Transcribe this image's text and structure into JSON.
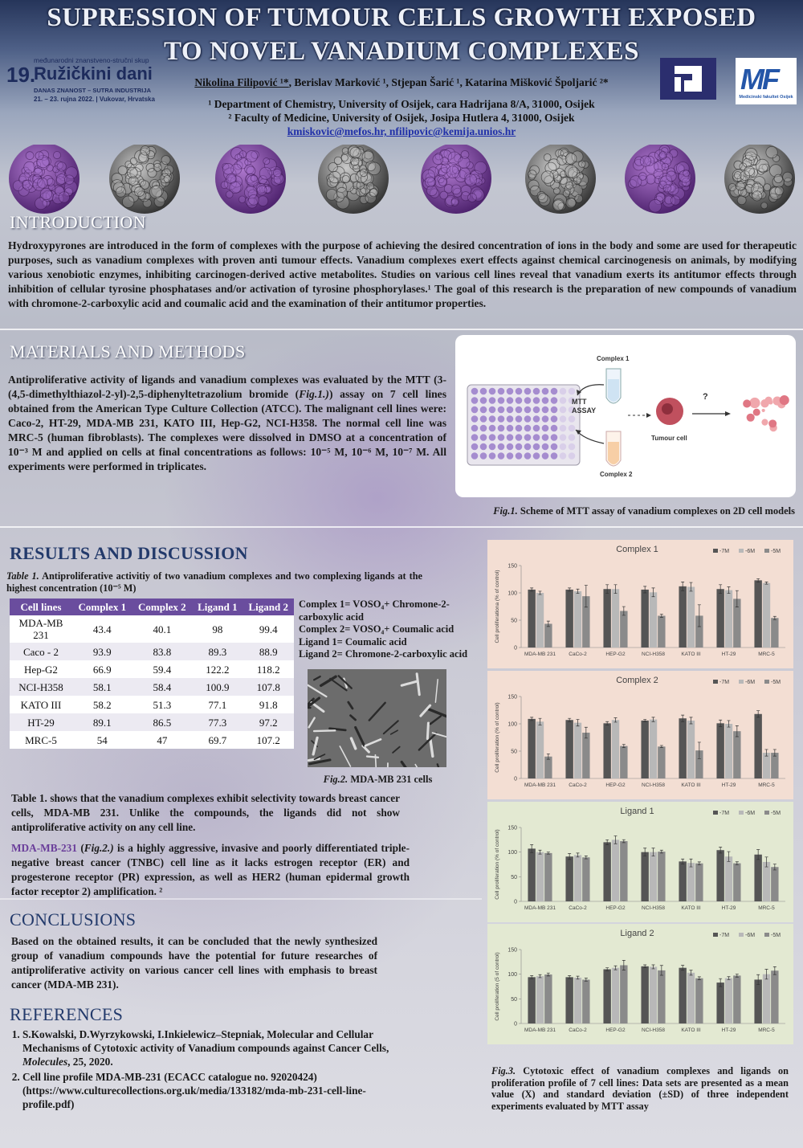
{
  "header": {
    "title": [
      "SUPRESSION OF TUMOUR CELLS GROWTH EXPOSED",
      "TO NOVEL VANADIUM COMPLEXES"
    ],
    "conference": {
      "subtitle": "međunarodni znanstveno-stručni skup",
      "edition": "19.",
      "name": "Ružičkini dani",
      "motto": "DANAS ZNANOST – SUTRA INDUSTRIJA",
      "dates": "21. – 23. rujna 2022.  |  Vukovar, Hrvatska"
    },
    "authors": {
      "first": "Nikolina Filipović ¹*",
      "rest": ", Berislav Marković ¹, Stjepan Šarić ¹, Katarina Mišković Špoljarić ²*"
    },
    "affiliations": [
      "¹ Department of Chemistry, University of Osijek, cara Hadrijana 8/A, 31000, Osijek",
      "² Faculty of Medicine, University of Osijek, Josipa Hutlera 4, 31000, Osijek"
    ],
    "emails": "kmiskovic@mefos.hr, nfilipovic@kemija.unios.hr",
    "logo_right": {
      "mark": "MF",
      "caption": "Medicinski fakultet Osijek"
    }
  },
  "intro": {
    "heading": "INTRODUCTION",
    "text": "Hydroxypyrones are introduced in the form of complexes with the purpose of achieving the desired concentration of ions in the body and some are used for therapeutic purposes, such as vanadium complexes with proven anti tumour effects. Vanadium complexes  exert effects against chemical carcinogenesis on animals, by modifying  various xenobiotic enzymes, inhibiting carcinogen-derived active metabolites. Studies on various cell lines reveal that vanadium exerts its antitumor effects through inhibition of cellular tyrosine phosphatases and/or activation of tyrosine phosphorylases.¹ The goal of this research is the preparation of new compounds of vanadium with chromone-2-carboxylic acid and coumalic acid and the examination of their antitumor properties."
  },
  "methods": {
    "heading": "MATERIALS AND METHODS",
    "text": [
      {
        "text": "Antiproliferative activity of ligands and vanadium complexes was evaluated by the MTT (3-(4,5-dimethylthiazol-2-yl)-2,5-diphenyltetrazolium bromide ("
      },
      {
        "text": "Fig.1.)",
        "em": true
      },
      {
        "text": ") assay on 7 cell lines obtained from the American Type Culture Collection (ATCC). The malignant cell lines were: Caco-2, HT-29, MDA-MB 231, KATO III, Hep-G2, NCI-H358. The normal cell line was MRC-5 (human fibroblasts). The complexes were dissolved in DMSO at a concentration of 10⁻³ M and applied on cells at final concentrations as follows: 10⁻⁵ M, 10⁻⁶ M, 10⁻⁷ M. All experiments were performed in triplicates."
      }
    ],
    "figure": {
      "labels": {
        "complex1": "Complex 1",
        "assay": [
          "MTT",
          "ASSAY"
        ],
        "cell": "Tumour cell",
        "question": "?",
        "complex2": "Complex 2"
      },
      "caption": [
        {
          "text": "Fig.1.",
          "em": true
        },
        {
          "text": " Scheme of MTT assay of vanadium complexes  on 2D cell models"
        }
      ]
    }
  },
  "results": {
    "heading": "RESULTS AND DISCUSSION",
    "table_caption": [
      {
        "text": "Table 1.",
        "em": true
      },
      {
        "text": " Antiproliferative activitiy of two vanadium complexes and two complexing ligands at the highest concentration (10⁻⁵ M)"
      }
    ],
    "table": {
      "header": [
        "Cell lines",
        "Complex 1",
        "Complex 2",
        "Ligand 1",
        "Ligand 2"
      ],
      "rows": [
        [
          "MDA-MB 231",
          43.4,
          40.1,
          98,
          99.4
        ],
        [
          "Caco - 2",
          93.9,
          83.8,
          89.3,
          88.9
        ],
        [
          "Hep-G2",
          66.9,
          59.4,
          122.2,
          118.2
        ],
        [
          "NCI-H358",
          58.1,
          58.4,
          100.9,
          107.8
        ],
        [
          "KATO III",
          58.2,
          51.3,
          77.1,
          91.8
        ],
        [
          "HT-29",
          89.1,
          86.5,
          77.3,
          97.2
        ],
        [
          "MRC-5",
          54,
          47,
          69.7,
          107.2
        ]
      ]
    },
    "notes": [
      "Complex 1= VOSO₄+ Chromone-2-carboxylic acid",
      "Complex 2= VOSO₄+ Coumalic acid",
      "Ligand 1= Coumalic acid",
      "Ligand 2= Chromone-2-carboxylic acid"
    ],
    "fig2_caption": [
      {
        "text": "Fig.2.",
        "em": true
      },
      {
        "text": " MDA-MB 231 cells"
      }
    ],
    "paragraph1": "Table 1. shows that the vanadium complexes exhibit selectivity towards breast cancer cells, MDA-MB 231. Unlike the compounds, the ligands did not show antiproliferative activity on any cell line.",
    "paragraph2": [
      {
        "text": "MDA-MB-231",
        "highlight": true
      },
      {
        "text": " ("
      },
      {
        "text": "Fig.2.)",
        "em": true
      },
      {
        "text": " is a highly aggressive, invasive and poorly differentiated triple-negative breast cancer (TNBC) cell line as it lacks estrogen receptor (ER) and progesterone receptor (PR) expression, as well as HER2 (human epidermal growth factor receptor 2) amplification. ²"
      }
    ],
    "fig3_caption": [
      {
        "text": "Fig.3.",
        "em": true
      },
      {
        "text": " Cytotoxic effect of vanadium complexes and ligands on proliferation profile of 7 cell lines: Data sets are presented as a mean value (X) and standard deviation (±SD) of three independent experiments evaluated by MTT assay"
      }
    ]
  },
  "conclusions": {
    "heading": "CONCLUSIONS",
    "text": "Based on the obtained results, it can be concluded that the newly synthesized group of vanadium compounds have the potential for future researches of antiproliferative activity on various cancer cell lines with emphasis to breast cancer (MDA-MB 231)."
  },
  "references": {
    "heading": "REFERENCES",
    "items": [
      [
        {
          "text": "S.Kowalski, D.Wyrzykowski, I.Inkielewicz–Stepniak, Molecular and Cellular Mechanisms of Cytotoxic activity of Vanadium compounds against Cancer Cells, "
        },
        {
          "text": "Molecules",
          "em": true
        },
        {
          "text": ", 25, 2020."
        }
      ],
      [
        {
          "text": "Cell line profile MDA-MB-231 (ECACC catalogue no. 92020424) (https://www.culturecollections.org.uk/media/133182/mda-mb-231-cell-line-profile.pdf)"
        }
      ]
    ]
  },
  "chart_data": [
    {
      "type": "bar",
      "title": "Complex 1",
      "y_label": "Cell proliferationa (% of control)",
      "categories": [
        "MDA-MB 231",
        "CaCo-2",
        "HEP-G2",
        "NCI-H358",
        "KATO III",
        "HT-29",
        "MRC-5"
      ],
      "ylim": [
        0,
        150
      ],
      "yticks": [
        0,
        50,
        100,
        150
      ],
      "series": [
        {
          "name": "-7M",
          "color": "#555555",
          "values": [
            106,
            106,
            107,
            106,
            112,
            107,
            123
          ],
          "errors": [
            3,
            3,
            8,
            6,
            8,
            8,
            3
          ]
        },
        {
          "name": "-6M",
          "color": "#b8b8b8",
          "values": [
            100,
            103,
            107,
            101,
            111,
            105,
            118
          ],
          "errors": [
            3,
            4,
            8,
            8,
            8,
            6,
            2
          ]
        },
        {
          "name": "-5M",
          "color": "#8a8a8a",
          "values": [
            43.4,
            93.9,
            66.9,
            58.1,
            58.2,
            89.1,
            54
          ],
          "errors": [
            5,
            20,
            8,
            3,
            20,
            15,
            3
          ]
        }
      ]
    },
    {
      "type": "bar",
      "title": "Complex 2",
      "y_label": "Cell proliferation (% of control)",
      "categories": [
        "MDA-MB 231",
        "CaCo-2",
        "HEP-G2",
        "NCI-H358",
        "KATO III",
        "HT-29",
        "MRC-5"
      ],
      "ylim": [
        0,
        150
      ],
      "yticks": [
        0,
        50,
        100,
        150
      ],
      "series": [
        {
          "name": "-7M",
          "color": "#555555",
          "values": [
            109,
            107,
            101,
            106,
            110,
            101,
            118
          ],
          "errors": [
            3,
            3,
            3,
            2,
            6,
            6,
            6
          ]
        },
        {
          "name": "-6M",
          "color": "#b8b8b8",
          "values": [
            104,
            102,
            107,
            108,
            106,
            100,
            47
          ],
          "errors": [
            6,
            6,
            4,
            4,
            6,
            6,
            6
          ]
        },
        {
          "name": "-5M",
          "color": "#8a8a8a",
          "values": [
            40.1,
            83.8,
            59.4,
            58.4,
            51.3,
            86.5,
            47
          ],
          "errors": [
            5,
            10,
            3,
            2,
            15,
            10,
            6
          ]
        }
      ]
    },
    {
      "type": "bar",
      "title": "Ligand 1",
      "y_label": "Cell proliferation (% of control)",
      "categories": [
        "MDA-MB 231",
        "CaCo-2",
        "HEP-G2",
        "NCI-H358",
        "KATO III",
        "HT-29",
        "MRC-5"
      ],
      "ylim": [
        0,
        150
      ],
      "yticks": [
        0,
        50,
        100,
        150
      ],
      "series": [
        {
          "name": "-7M",
          "color": "#555555",
          "values": [
            107,
            91,
            120,
            100,
            81,
            104,
            95
          ],
          "errors": [
            8,
            6,
            5,
            8,
            5,
            6,
            10
          ]
        },
        {
          "name": "-6M",
          "color": "#b8b8b8",
          "values": [
            100,
            94,
            125,
            100,
            78,
            91,
            80
          ],
          "errors": [
            4,
            4,
            8,
            8,
            8,
            10,
            10
          ]
        },
        {
          "name": "-5M",
          "color": "#8a8a8a",
          "values": [
            98,
            89.3,
            122.2,
            100.9,
            77.1,
            77.3,
            69.7
          ],
          "errors": [
            2,
            3,
            3,
            3,
            3,
            3,
            6
          ]
        }
      ]
    },
    {
      "type": "bar",
      "title": "Ligand 2",
      "y_label": "Cell proliferation (5 of control)",
      "categories": [
        "MDA-MB 231",
        "CaCo-2",
        "HEP-G2",
        "NCI-H358",
        "KATO III",
        "HT-29",
        "MRC-5"
      ],
      "ylim": [
        0,
        150
      ],
      "yticks": [
        0,
        50,
        100,
        150
      ],
      "series": [
        {
          "name": "-7M",
          "color": "#555555",
          "values": [
            94,
            94,
            110,
            116,
            113,
            83,
            89
          ],
          "errors": [
            3,
            3,
            3,
            3,
            5,
            8,
            10
          ]
        },
        {
          "name": "-6M",
          "color": "#b8b8b8",
          "values": [
            96,
            93,
            113,
            115,
            103,
            92,
            100
          ],
          "errors": [
            3,
            3,
            4,
            4,
            5,
            3,
            10
          ]
        },
        {
          "name": "-5M",
          "color": "#8a8a8a",
          "values": [
            99.4,
            88.9,
            118.2,
            107.8,
            91.8,
            97.2,
            107.2
          ],
          "errors": [
            3,
            3,
            10,
            10,
            3,
            3,
            8
          ]
        }
      ]
    }
  ]
}
